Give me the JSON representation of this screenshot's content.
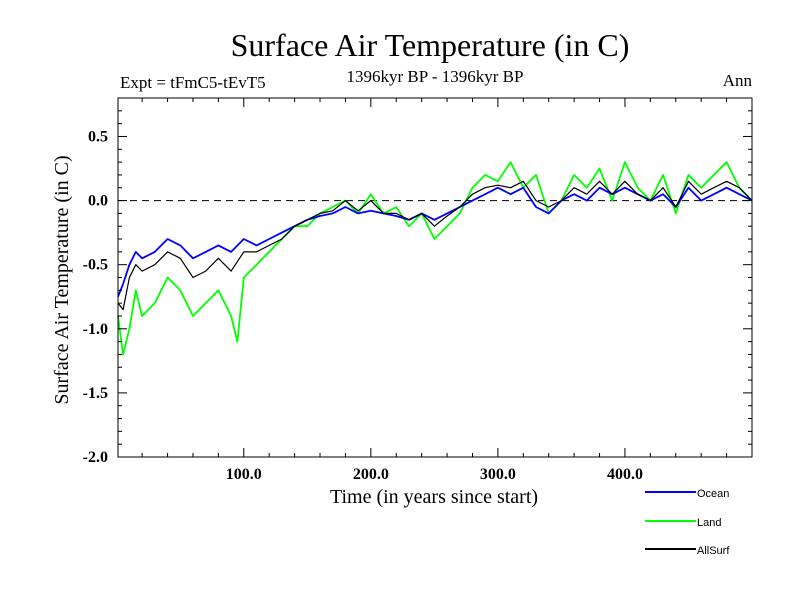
{
  "chart_data": {
    "type": "line",
    "title": "Surface Air Temperature (in C)",
    "subtitle_left": "Expt = tFmC5-tEvT5",
    "subtitle_center": "1396kyr BP - 1396kyr BP",
    "subtitle_right": "Ann",
    "xlabel": "Time (in years since start)",
    "ylabel": "Surface Air Temperature (in C)",
    "xlim": [
      1,
      500
    ],
    "ylim": [
      -2.0,
      0.8
    ],
    "x_ticks": [
      100,
      200,
      300,
      400
    ],
    "x_tick_labels": [
      "100.0",
      "200.0",
      "300.0",
      "400.0"
    ],
    "y_ticks": [
      -2.0,
      -1.5,
      -1.0,
      -0.5,
      0.0,
      0.5
    ],
    "y_tick_labels": [
      "-2.0",
      "-1.5",
      "-1.0",
      "-0.5",
      "0.0",
      "0.5"
    ],
    "reference_line": 0.0,
    "series": [
      {
        "name": "Land",
        "color": "#00ff00",
        "x": [
          1,
          5,
          10,
          15,
          20,
          30,
          40,
          50,
          60,
          70,
          80,
          90,
          95,
          100,
          110,
          120,
          130,
          140,
          150,
          160,
          170,
          180,
          190,
          200,
          210,
          220,
          230,
          240,
          250,
          260,
          270,
          280,
          290,
          300,
          310,
          320,
          330,
          340,
          350,
          360,
          370,
          380,
          390,
          400,
          410,
          420,
          430,
          440,
          450,
          460,
          470,
          480,
          490,
          500
        ],
        "values": [
          -0.9,
          -1.2,
          -1.0,
          -0.7,
          -0.9,
          -0.8,
          -0.6,
          -0.7,
          -0.9,
          -0.8,
          -0.7,
          -0.9,
          -1.1,
          -0.6,
          -0.5,
          -0.4,
          -0.3,
          -0.2,
          -0.2,
          -0.1,
          -0.05,
          0.0,
          -0.1,
          0.05,
          -0.1,
          -0.05,
          -0.2,
          -0.1,
          -0.3,
          -0.2,
          -0.1,
          0.1,
          0.2,
          0.15,
          0.3,
          0.1,
          0.2,
          -0.1,
          0.0,
          0.2,
          0.1,
          0.25,
          0.0,
          0.3,
          0.1,
          0.0,
          0.2,
          -0.1,
          0.2,
          0.1,
          0.2,
          0.3,
          0.1,
          0.0
        ]
      },
      {
        "name": "Ocean",
        "color": "#0000ff",
        "x": [
          1,
          5,
          10,
          15,
          20,
          30,
          40,
          50,
          60,
          70,
          80,
          90,
          100,
          110,
          120,
          130,
          140,
          150,
          160,
          170,
          180,
          190,
          200,
          210,
          220,
          230,
          240,
          250,
          260,
          270,
          280,
          290,
          300,
          310,
          320,
          330,
          340,
          350,
          360,
          370,
          380,
          390,
          400,
          410,
          420,
          430,
          440,
          450,
          460,
          470,
          480,
          490,
          500
        ],
        "values": [
          -0.75,
          -0.65,
          -0.5,
          -0.4,
          -0.45,
          -0.4,
          -0.3,
          -0.35,
          -0.45,
          -0.4,
          -0.35,
          -0.4,
          -0.3,
          -0.35,
          -0.3,
          -0.25,
          -0.2,
          -0.15,
          -0.12,
          -0.1,
          -0.05,
          -0.1,
          -0.08,
          -0.1,
          -0.12,
          -0.15,
          -0.1,
          -0.15,
          -0.1,
          -0.05,
          0.0,
          0.05,
          0.1,
          0.05,
          0.1,
          -0.05,
          -0.1,
          0.0,
          0.05,
          0.0,
          0.1,
          0.05,
          0.1,
          0.05,
          0.0,
          0.05,
          -0.05,
          0.1,
          0.0,
          0.05,
          0.1,
          0.05,
          0.0
        ]
      },
      {
        "name": "AllSurf",
        "color": "#000000",
        "x": [
          1,
          5,
          10,
          15,
          20,
          30,
          40,
          50,
          60,
          70,
          80,
          90,
          100,
          110,
          120,
          130,
          140,
          150,
          160,
          170,
          180,
          190,
          200,
          210,
          220,
          230,
          240,
          250,
          260,
          270,
          280,
          290,
          300,
          310,
          320,
          330,
          340,
          350,
          360,
          370,
          380,
          390,
          400,
          410,
          420,
          430,
          440,
          450,
          460,
          470,
          480,
          490,
          500
        ],
        "values": [
          -0.8,
          -0.85,
          -0.6,
          -0.5,
          -0.55,
          -0.5,
          -0.4,
          -0.45,
          -0.6,
          -0.55,
          -0.45,
          -0.55,
          -0.4,
          -0.4,
          -0.35,
          -0.3,
          -0.2,
          -0.15,
          -0.1,
          -0.08,
          0.0,
          -0.08,
          0.0,
          -0.1,
          -0.1,
          -0.15,
          -0.1,
          -0.2,
          -0.12,
          -0.05,
          0.05,
          0.1,
          0.12,
          0.1,
          0.15,
          0.0,
          -0.05,
          0.0,
          0.1,
          0.05,
          0.15,
          0.05,
          0.15,
          0.05,
          0.0,
          0.1,
          -0.05,
          0.15,
          0.05,
          0.1,
          0.15,
          0.1,
          0.0
        ]
      }
    ],
    "legend": {
      "placement": "bottom-right",
      "order": [
        "Ocean",
        "Land",
        "AllSurf"
      ]
    }
  }
}
